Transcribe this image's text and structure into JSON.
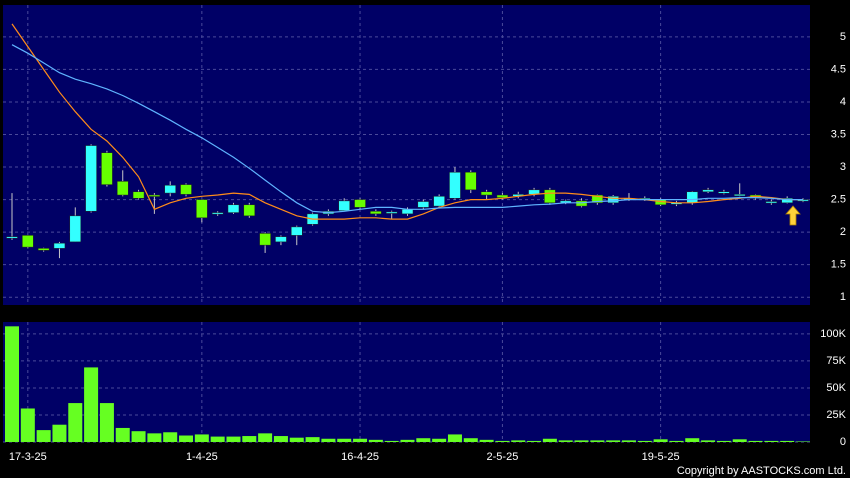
{
  "chart_data": [
    {
      "type": "candlestick",
      "categories": [
        null,
        "17-3-25",
        null,
        null,
        null,
        null,
        null,
        null,
        null,
        null,
        null,
        null,
        "1-4-25",
        null,
        null,
        null,
        null,
        null,
        null,
        null,
        null,
        null,
        "16-4-25",
        null,
        null,
        null,
        null,
        null,
        null,
        null,
        null,
        "2-5-25",
        null,
        null,
        null,
        null,
        null,
        null,
        null,
        null,
        null,
        "19-5-25",
        null,
        null,
        null,
        null,
        null,
        null,
        null,
        null,
        null
      ],
      "open": [
        1.92,
        1.95,
        1.75,
        1.75,
        1.85,
        2.32,
        3.22,
        2.78,
        2.62,
        2.57,
        2.6,
        2.73,
        2.5,
        2.28,
        2.3,
        2.42,
        1.98,
        1.85,
        1.95,
        2.12,
        2.28,
        2.33,
        2.5,
        2.32,
        2.29,
        2.28,
        2.38,
        2.4,
        2.52,
        2.92,
        2.62,
        2.57,
        2.55,
        2.58,
        2.65,
        2.45,
        2.48,
        2.57,
        2.45,
        2.5,
        2.5,
        2.5,
        2.43,
        2.45,
        2.62,
        2.6,
        2.57,
        2.57,
        2.45,
        2.45,
        2.48
      ],
      "high": [
        2.6,
        1.95,
        1.76,
        1.85,
        2.38,
        3.35,
        3.25,
        2.95,
        2.65,
        2.6,
        2.78,
        2.75,
        2.5,
        2.32,
        2.45,
        2.45,
        2.0,
        1.95,
        2.1,
        2.3,
        2.35,
        2.52,
        2.52,
        2.35,
        2.33,
        2.38,
        2.5,
        2.58,
        3.0,
        2.95,
        2.65,
        2.6,
        2.62,
        2.68,
        2.68,
        2.5,
        2.52,
        2.58,
        2.57,
        2.6,
        2.55,
        2.52,
        2.48,
        2.63,
        2.68,
        2.65,
        2.75,
        2.58,
        2.5,
        2.55,
        2.52
      ],
      "low": [
        1.88,
        1.75,
        1.7,
        1.6,
        1.85,
        2.3,
        2.7,
        2.55,
        2.5,
        2.28,
        2.55,
        2.55,
        2.15,
        2.25,
        2.28,
        2.22,
        1.68,
        1.8,
        1.8,
        2.1,
        2.25,
        2.32,
        2.35,
        2.25,
        2.2,
        2.25,
        2.35,
        2.38,
        2.5,
        2.6,
        2.5,
        2.5,
        2.52,
        2.55,
        2.42,
        2.43,
        2.38,
        2.42,
        2.42,
        2.48,
        2.48,
        2.4,
        2.4,
        2.42,
        2.6,
        2.58,
        2.55,
        2.5,
        2.42,
        2.44,
        2.46
      ],
      "close": [
        1.93,
        1.77,
        1.72,
        1.83,
        2.25,
        3.33,
        2.73,
        2.57,
        2.52,
        2.55,
        2.72,
        2.58,
        2.22,
        2.3,
        2.42,
        2.25,
        1.8,
        1.93,
        2.08,
        2.28,
        2.32,
        2.48,
        2.38,
        2.28,
        2.31,
        2.35,
        2.47,
        2.55,
        2.92,
        2.65,
        2.57,
        2.53,
        2.58,
        2.65,
        2.45,
        2.48,
        2.4,
        2.45,
        2.55,
        2.52,
        2.52,
        2.42,
        2.45,
        2.62,
        2.65,
        2.62,
        2.58,
        2.52,
        2.47,
        2.52,
        2.5
      ],
      "up_color": "#33ffff",
      "down_color": "#66ff00",
      "series": [
        {
          "color": "#ff8c1a",
          "values": [
            5.2,
            4.85,
            4.5,
            4.15,
            3.85,
            3.58,
            3.4,
            3.15,
            2.85,
            2.35,
            2.45,
            2.52,
            2.55,
            2.57,
            2.6,
            2.58,
            2.45,
            2.35,
            2.25,
            2.2,
            2.2,
            2.2,
            2.22,
            2.22,
            2.2,
            2.2,
            2.28,
            2.38,
            2.45,
            2.5,
            2.5,
            2.52,
            2.55,
            2.58,
            2.6,
            2.6,
            2.58,
            2.55,
            2.52,
            2.52,
            2.5,
            2.47,
            2.45,
            2.45,
            2.47,
            2.5,
            2.52,
            2.55,
            2.53,
            2.5,
            2.5
          ]
        },
        {
          "color": "#5fb4ff",
          "values": [
            4.88,
            4.75,
            4.6,
            4.45,
            4.35,
            4.28,
            4.2,
            4.1,
            3.98,
            3.85,
            3.72,
            3.58,
            3.45,
            3.3,
            3.15,
            2.98,
            2.8,
            2.62,
            2.45,
            2.32,
            2.3,
            2.32,
            2.35,
            2.38,
            2.38,
            2.35,
            2.35,
            2.37,
            2.38,
            2.38,
            2.38,
            2.38,
            2.4,
            2.42,
            2.43,
            2.45,
            2.45,
            2.47,
            2.48,
            2.5,
            2.5,
            2.5,
            2.5,
            2.5,
            2.52,
            2.52,
            2.53,
            2.53,
            2.52,
            2.5,
            2.5
          ]
        }
      ],
      "ylim": [
        0.88,
        5.49
      ],
      "yticks": [
        1,
        1.5,
        2,
        2.5,
        3,
        3.5,
        4,
        4.5,
        5
      ],
      "grid": true
    },
    {
      "type": "bar",
      "values": [
        107000,
        31000,
        11000,
        16000,
        36000,
        69000,
        36000,
        13000,
        10000,
        8000,
        9000,
        6000,
        7000,
        5000,
        5000,
        5500,
        8000,
        5500,
        4000,
        4500,
        3000,
        3000,
        3000,
        2000,
        1000,
        2000,
        3500,
        3000,
        7000,
        3500,
        2000,
        1000,
        1500,
        1000,
        3000,
        1500,
        1500,
        1500,
        1500,
        1500,
        1000,
        2500,
        1000,
        3500,
        1500,
        1000,
        2500,
        1000,
        1000,
        1000,
        500
      ],
      "color": "#66ff22",
      "ylim": [
        0,
        111000
      ],
      "yticks": [
        0,
        {
          "value": 25000,
          "label": "25K"
        },
        {
          "value": 50000,
          "label": "50K"
        },
        {
          "value": 75000,
          "label": "75K"
        },
        {
          "value": 100000,
          "label": "100K"
        }
      ],
      "grid": true
    }
  ],
  "footer": "Copyright by AASTOCKS.com Ltd."
}
